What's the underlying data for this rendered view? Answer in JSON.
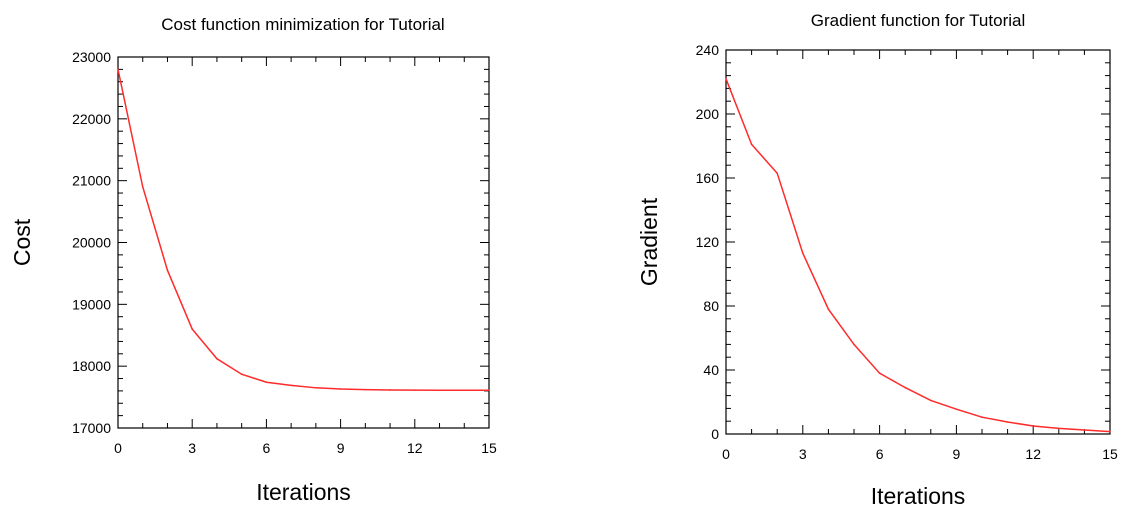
{
  "chart_data": [
    {
      "type": "line",
      "title": "Cost function minimization for Tutorial",
      "xlabel": "Iterations",
      "ylabel": "Cost",
      "xlim": [
        0,
        15
      ],
      "ylim": [
        17000,
        23000
      ],
      "xticks": [
        0,
        3,
        6,
        9,
        12,
        15
      ],
      "yticks": [
        17000,
        18000,
        19000,
        20000,
        21000,
        22000,
        23000
      ],
      "grid": false,
      "line_color": "#ff2a2a",
      "series": [
        {
          "x": [
            0,
            1,
            2,
            3,
            4,
            5,
            6,
            7,
            8,
            9,
            10,
            11,
            12,
            13,
            14,
            15
          ],
          "values": [
            22800,
            20900,
            19550,
            18600,
            18120,
            17870,
            17740,
            17690,
            17650,
            17630,
            17620,
            17615,
            17612,
            17610,
            17610,
            17610
          ]
        }
      ]
    },
    {
      "type": "line",
      "title": "Gradient function for Tutorial",
      "xlabel": "Iterations",
      "ylabel": "Gradient",
      "xlim": [
        0,
        15
      ],
      "ylim": [
        0,
        240
      ],
      "xticks": [
        0,
        3,
        6,
        9,
        12,
        15
      ],
      "yticks": [
        0,
        40,
        80,
        120,
        160,
        200,
        240
      ],
      "grid": false,
      "line_color": "#ff2a2a",
      "series": [
        {
          "x": [
            0,
            1,
            2,
            3,
            4,
            5,
            6,
            7,
            8,
            9,
            10,
            11,
            12,
            13,
            14,
            15
          ],
          "values": [
            222,
            181,
            163,
            113,
            78,
            56,
            38,
            29,
            21,
            15.5,
            10.5,
            7.5,
            5,
            3.5,
            2.5,
            1.5
          ]
        }
      ]
    }
  ]
}
